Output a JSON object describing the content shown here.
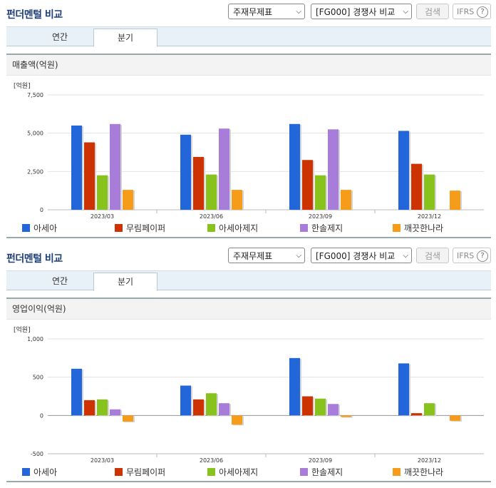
{
  "sections": [
    {
      "header": {
        "title": "펀더멘털 비교",
        "statement_select": "주재무제표",
        "peer_select": "[FG000] 경쟁사 비교",
        "search_label": "검색",
        "ifrs_label": "IFRS",
        "help_label": "?"
      },
      "tabs": [
        {
          "label": "연간"
        },
        {
          "label": "분기",
          "active": true
        }
      ],
      "panel_title": "매출액(억원)",
      "unit_label": "[억원]"
    },
    {
      "header": {
        "title": "펀더멘털 비교",
        "statement_select": "주재무제표",
        "peer_select": "[FG000] 경쟁사 비교",
        "search_label": "검색",
        "ifrs_label": "IFRS",
        "help_label": "?"
      },
      "tabs": [
        {
          "label": "연간"
        },
        {
          "label": "분기",
          "active": true
        }
      ],
      "panel_title": "영업이익(억원)",
      "unit_label": "[억원]"
    }
  ],
  "legend": [
    {
      "name": "아세아",
      "color": "#2366d9"
    },
    {
      "name": "무림페이퍼",
      "color": "#cc3300"
    },
    {
      "name": "아세아제지",
      "color": "#88c21c"
    },
    {
      "name": "한솔제지",
      "color": "#a87dd9"
    },
    {
      "name": "깨끗한나라",
      "color": "#f59c1a"
    }
  ],
  "chart_data": [
    {
      "type": "bar",
      "title": "매출액(억원)",
      "ylabel": "[억원]",
      "categories": [
        "2023/03",
        "2023/06",
        "2023/09",
        "2023/12"
      ],
      "ylim": [
        0,
        7500
      ],
      "yticks": [
        0,
        2500,
        5000,
        7500
      ],
      "ytick_labels": [
        "0",
        "2,500",
        "5,000",
        "7,500"
      ],
      "grid": true,
      "legend_position": "bottom",
      "series": [
        {
          "name": "아세아",
          "color": "#2366d9",
          "values": [
            5500,
            4900,
            5600,
            5150
          ]
        },
        {
          "name": "무림페이퍼",
          "color": "#cc3300",
          "values": [
            4400,
            3450,
            3250,
            3000
          ]
        },
        {
          "name": "아세아제지",
          "color": "#88c21c",
          "values": [
            2250,
            2300,
            2250,
            2300
          ]
        },
        {
          "name": "한솔제지",
          "color": "#a87dd9",
          "values": [
            5600,
            5300,
            5250,
            null
          ]
        },
        {
          "name": "깨끗한나라",
          "color": "#f59c1a",
          "values": [
            1300,
            1300,
            1300,
            1250
          ]
        }
      ]
    },
    {
      "type": "bar",
      "title": "영업이익(억원)",
      "ylabel": "[억원]",
      "categories": [
        "2023/03",
        "2023/06",
        "2023/09",
        "2023/12"
      ],
      "ylim": [
        -500,
        1000
      ],
      "yticks": [
        -500,
        0,
        500,
        1000
      ],
      "ytick_labels": [
        "-500",
        "0",
        "500",
        "1,000"
      ],
      "grid": true,
      "legend_position": "bottom",
      "series": [
        {
          "name": "아세아",
          "color": "#2366d9",
          "values": [
            610,
            390,
            750,
            680
          ]
        },
        {
          "name": "무림페이퍼",
          "color": "#cc3300",
          "values": [
            200,
            210,
            250,
            30
          ]
        },
        {
          "name": "아세아제지",
          "color": "#88c21c",
          "values": [
            210,
            290,
            220,
            160
          ]
        },
        {
          "name": "한솔제지",
          "color": "#a87dd9",
          "values": [
            80,
            160,
            150,
            null
          ]
        },
        {
          "name": "깨끗한나라",
          "color": "#f59c1a",
          "values": [
            -80,
            -120,
            -20,
            -70
          ]
        }
      ]
    }
  ]
}
